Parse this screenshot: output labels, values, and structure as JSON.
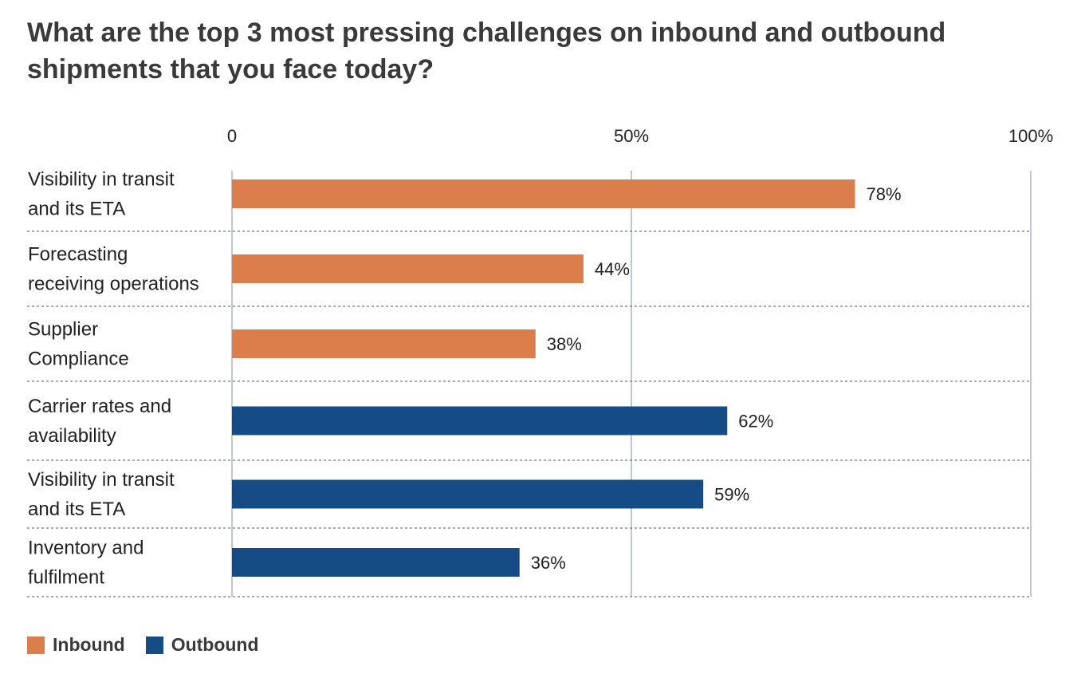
{
  "chart_data": {
    "type": "bar",
    "orientation": "horizontal",
    "title": "What are the top 3 most pressing challenges on inbound and outbound shipments that you face today?",
    "categories": [
      [
        "Visibility in transit",
        "and its ETA"
      ],
      [
        "Forecasting",
        "receiving operations"
      ],
      [
        "Supplier",
        "Compliance"
      ],
      [
        "Carrier rates and",
        "availability"
      ],
      [
        "Visibility in transit",
        "and its ETA"
      ],
      [
        "Inventory and",
        "fulfilment"
      ]
    ],
    "values": [
      78,
      44,
      38,
      62,
      59,
      36
    ],
    "value_labels": [
      "78%",
      "44%",
      "38%",
      "62%",
      "59%",
      "36%"
    ],
    "groups": [
      "Inbound",
      "Inbound",
      "Inbound",
      "Outbound",
      "Outbound",
      "Outbound"
    ],
    "series": [
      {
        "name": "Inbound",
        "color": "#dc7d4c"
      },
      {
        "name": "Outbound",
        "color": "#164c85"
      }
    ],
    "xlim": [
      0,
      100
    ],
    "xticks": [
      {
        "value": 0,
        "label": "0"
      },
      {
        "value": 50,
        "label": "50%"
      },
      {
        "value": 100,
        "label": "100%"
      }
    ],
    "grid": true,
    "legend_position": "bottom-left"
  }
}
